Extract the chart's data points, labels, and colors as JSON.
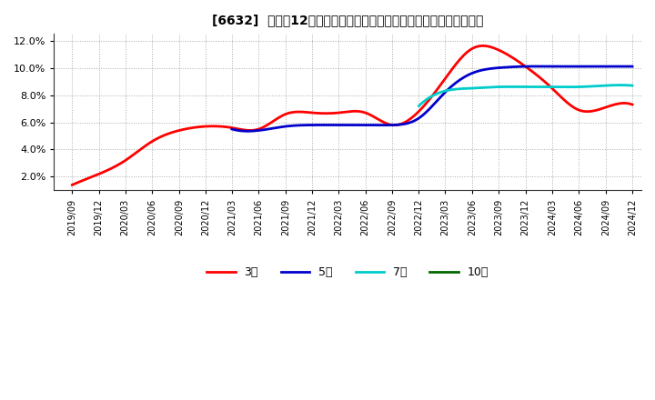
{
  "title": "[6632]  売上高12か月移動合計の対前年同期増減率の標準偏差の推移",
  "ylim": [
    0.01,
    0.125
  ],
  "yticks": [
    0.02,
    0.04,
    0.06,
    0.08,
    0.1,
    0.12
  ],
  "ytick_labels": [
    "2.0%",
    "4.0%",
    "6.0%",
    "8.0%",
    "10.0%",
    "12.0%"
  ],
  "background_color": "#ffffff",
  "plot_bg_color": "#ffffff",
  "grid_color": "#aaaaaa",
  "series": {
    "3year": {
      "color": "#ff0000",
      "label": "3年",
      "data": [
        [
          "2019/09",
          0.014
        ],
        [
          "2019/12",
          0.022
        ],
        [
          "2020/03",
          0.032
        ],
        [
          "2020/06",
          0.046
        ],
        [
          "2020/09",
          0.054
        ],
        [
          "2020/12",
          0.057
        ],
        [
          "2021/03",
          0.056
        ],
        [
          "2021/06",
          0.055
        ],
        [
          "2021/09",
          0.066
        ],
        [
          "2021/12",
          0.067
        ],
        [
          "2022/03",
          0.067
        ],
        [
          "2022/06",
          0.067
        ],
        [
          "2022/09",
          0.058
        ],
        [
          "2022/12",
          0.068
        ],
        [
          "2023/03",
          0.092
        ],
        [
          "2023/06",
          0.114
        ],
        [
          "2023/09",
          0.113
        ],
        [
          "2023/12",
          0.101
        ],
        [
          "2024/03",
          0.085
        ],
        [
          "2024/06",
          0.069
        ],
        [
          "2024/09",
          0.071
        ],
        [
          "2024/12",
          0.073
        ]
      ]
    },
    "5year": {
      "color": "#0000cc",
      "label": "5年",
      "data": [
        [
          "2021/03",
          0.055
        ],
        [
          "2021/06",
          0.054
        ],
        [
          "2021/09",
          0.057
        ],
        [
          "2021/12",
          0.058
        ],
        [
          "2022/03",
          0.058
        ],
        [
          "2022/06",
          0.058
        ],
        [
          "2022/09",
          0.058
        ],
        [
          "2022/12",
          0.063
        ],
        [
          "2023/03",
          0.082
        ],
        [
          "2023/06",
          0.096
        ],
        [
          "2023/09",
          0.1
        ],
        [
          "2023/12",
          0.101
        ],
        [
          "2024/03",
          0.101
        ],
        [
          "2024/06",
          0.101
        ],
        [
          "2024/09",
          0.101
        ],
        [
          "2024/12",
          0.101
        ]
      ]
    },
    "7year": {
      "color": "#00cccc",
      "label": "7年",
      "data": [
        [
          "2022/12",
          0.072
        ],
        [
          "2023/03",
          0.083
        ],
        [
          "2023/06",
          0.085
        ],
        [
          "2023/09",
          0.086
        ],
        [
          "2023/12",
          0.086
        ],
        [
          "2024/03",
          0.086
        ],
        [
          "2024/06",
          0.086
        ],
        [
          "2024/09",
          0.087
        ],
        [
          "2024/12",
          0.087
        ]
      ]
    },
    "10year": {
      "color": "#006600",
      "label": "10年",
      "data": []
    }
  },
  "xtick_labels": [
    "2019/09",
    "2019/12",
    "2020/03",
    "2020/06",
    "2020/09",
    "2020/12",
    "2021/03",
    "2021/06",
    "2021/09",
    "2021/12",
    "2022/03",
    "2022/06",
    "2022/09",
    "2022/12",
    "2023/03",
    "2023/06",
    "2023/09",
    "2023/12",
    "2024/03",
    "2024/06",
    "2024/09",
    "2024/12"
  ]
}
